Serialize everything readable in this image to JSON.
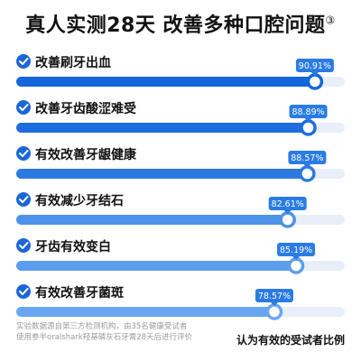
{
  "header": {
    "title": "真人实测28天 改善多种口腔问题",
    "footnote_marker": "③"
  },
  "footnote": {
    "line1": "实验数据源自第三方检测机构，由35名健康受试者",
    "line2": "使用参半oralshark羟基磷灰石牙膏28天后进行评价"
  },
  "colors": {
    "check_icon": "#1c67d8",
    "track": "#e8eff9",
    "badge": "#2a7be4",
    "bar_colors": [
      "#1565dc",
      "#1d6cde",
      "#2d79e2",
      "#4d92ea",
      "#5d9ded",
      "#6aa6f0"
    ]
  },
  "chart_data": {
    "type": "bar",
    "orientation": "horizontal",
    "categories": [
      "改善刷牙出血",
      "改善牙齿酸涩难受",
      "有效改善牙龈健康",
      "有效减少牙结石",
      "牙齿有效变白",
      "有效改善牙菌斑"
    ],
    "values": [
      90.91,
      88.89,
      88.57,
      82.61,
      85.19,
      78.57
    ],
    "value_labels": [
      "90.91%",
      "88.89%",
      "88.57%",
      "82.61%",
      "85.19%",
      "78.57%"
    ],
    "xlim": [
      0,
      100
    ],
    "xlabel": "认为有效的受试者比例",
    "title": "真人实测28天 改善多种口腔问题"
  }
}
